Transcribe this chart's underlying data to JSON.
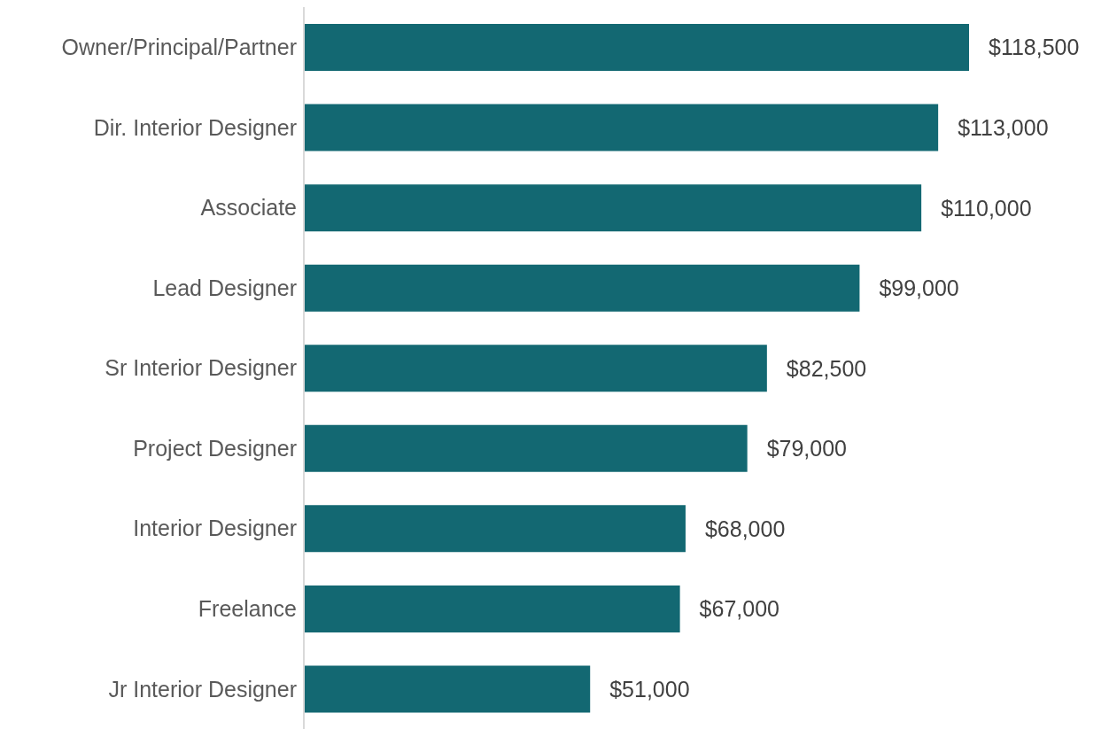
{
  "chart_data": {
    "type": "bar",
    "orientation": "horizontal",
    "categories": [
      "Owner/Principal/Partner",
      "Dir. Interior Designer",
      "Associate",
      "Lead Designer",
      "Sr Interior Designer",
      "Project Designer",
      "Interior Designer",
      "Freelance",
      "Jr Interior Designer"
    ],
    "values": [
      118500,
      113000,
      110000,
      99000,
      82500,
      79000,
      68000,
      67000,
      51000
    ],
    "value_labels": [
      "$118,500",
      "$113,000",
      "$110,000",
      "$99,000",
      "$82,500",
      "$79,000",
      "$68,000",
      "$67,000",
      "$51,000"
    ],
    "color": "#136872"
  }
}
